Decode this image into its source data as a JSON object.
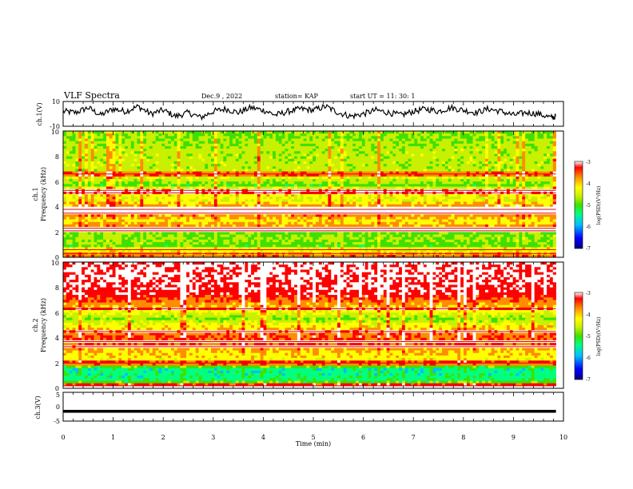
{
  "header": {
    "title": "VLF Spectra",
    "date": "Dec.9 , 2022",
    "station": "station= KAP",
    "start": "start UT = 11: 30: 1"
  },
  "chart_data": [
    {
      "type": "line",
      "ylabel": "ch.1(V)",
      "ylim": [
        -10,
        10
      ],
      "yticks": [
        "10",
        "-10"
      ],
      "xlim": [
        0,
        10
      ],
      "series": [
        {
          "x": [
            0,
            0.25,
            0.5,
            0.75,
            1,
            1.25,
            1.5,
            1.75,
            2,
            2.25,
            2.5,
            2.75,
            3,
            3.25,
            3.5,
            3.75,
            4,
            4.25,
            4.5,
            4.75,
            5,
            5.25,
            5.5,
            5.75,
            6,
            6.25,
            6.5,
            6.75,
            7,
            7.25,
            7.5,
            7.75,
            8,
            8.25,
            8.5,
            8.75,
            9,
            9.25,
            9.5,
            9.75,
            9.85
          ],
          "values": [
            2,
            1,
            5,
            -1,
            4,
            2,
            6,
            0,
            3,
            -2,
            1,
            -3,
            2,
            4,
            1,
            5,
            3,
            -1,
            2,
            4,
            3,
            6,
            1,
            -2,
            0,
            3,
            1,
            -1,
            2,
            4,
            2,
            5,
            3,
            1,
            4,
            2,
            -1,
            1,
            0,
            -3,
            -2
          ]
        }
      ],
      "trace_color": "#000000"
    },
    {
      "type": "heatmap",
      "ylabel_line1": "ch.1",
      "ylabel_line2": "Frequency (kHz)",
      "ylim": [
        0,
        10
      ],
      "yticks": [
        "0",
        "2",
        "4",
        "6",
        "8",
        "10"
      ],
      "xlim": [
        0,
        10
      ],
      "data_xmax": 9.85,
      "base_levels_by_freq": [
        [
          0,
          -3.3
        ],
        [
          0.4,
          -5.4
        ],
        [
          1.4,
          -5.0
        ],
        [
          1.9,
          -5.1
        ],
        [
          2.1,
          -3.6
        ],
        [
          2.9,
          -4.3
        ],
        [
          3.4,
          -3.8
        ],
        [
          3.8,
          -3.6
        ],
        [
          4.6,
          -4.6
        ],
        [
          5.3,
          -4.0
        ],
        [
          5.7,
          -5.2
        ],
        [
          6.3,
          -4.6
        ],
        [
          7.0,
          -4.8
        ],
        [
          8.5,
          -4.8
        ],
        [
          9.5,
          -5.0
        ],
        [
          10,
          -5.0
        ]
      ],
      "line_frequencies_khz": [
        0.3,
        0.6,
        2.1,
        2.3,
        3.5,
        3.8,
        5.1,
        5.3,
        6.6
      ],
      "colorbar": {
        "label": "log(PSD)(V²/Hz)",
        "range": [
          -7,
          -3
        ],
        "ticks": [
          "-3",
          "-4",
          "-5",
          "-6",
          "-7"
        ]
      }
    },
    {
      "type": "heatmap",
      "ylabel_line1": "ch.2",
      "ylabel_line2": "Frequency (kHz)",
      "ylim": [
        0,
        10
      ],
      "yticks": [
        "0",
        "2",
        "4",
        "6",
        "8",
        "10"
      ],
      "xlim": [
        0,
        10
      ],
      "data_xmax": 9.85,
      "base_levels_by_freq": [
        [
          0,
          -3.2
        ],
        [
          0.6,
          -5.6
        ],
        [
          1.5,
          -5.7
        ],
        [
          2.0,
          -4.5
        ],
        [
          3.0,
          -4.1
        ],
        [
          3.6,
          -3.6
        ],
        [
          4.2,
          -3.7
        ],
        [
          5.0,
          -4.4
        ],
        [
          5.5,
          -5.0
        ],
        [
          6.2,
          -4.3
        ],
        [
          7.4,
          -3.4
        ],
        [
          8.5,
          -3.2
        ],
        [
          10,
          -3.2
        ]
      ],
      "line_frequencies_khz": [
        0.2,
        2.0,
        3.3,
        3.7,
        4.5,
        6.3
      ],
      "colorbar": {
        "label": "log(PSD)(V²/Hz)",
        "range": [
          -7,
          -3
        ],
        "ticks": [
          "-3",
          "-4",
          "-5",
          "-6",
          "-7"
        ]
      }
    },
    {
      "type": "line",
      "ylabel": "ch.3(V)",
      "ylim": [
        -5,
        5
      ],
      "yticks": [
        "5",
        "0",
        "-5"
      ],
      "xlim": [
        0,
        10
      ],
      "xlabel": "Time (min)",
      "xticks": [
        "0",
        "1",
        "2",
        "3",
        "4",
        "5",
        "6",
        "7",
        "8",
        "9",
        "10"
      ],
      "series": [
        {
          "x": [
            0,
            9.85
          ],
          "values": [
            -1.6,
            -1.6
          ],
          "band_halfwidth": 0.5
        }
      ],
      "trace_color": "#000000"
    }
  ],
  "colormap": [
    "#00007f",
    "#0000ff",
    "#00bfff",
    "#00ff80",
    "#3fe000",
    "#c8f000",
    "#ffff00",
    "#ff8c00",
    "#ff0000",
    "#ffffff"
  ]
}
